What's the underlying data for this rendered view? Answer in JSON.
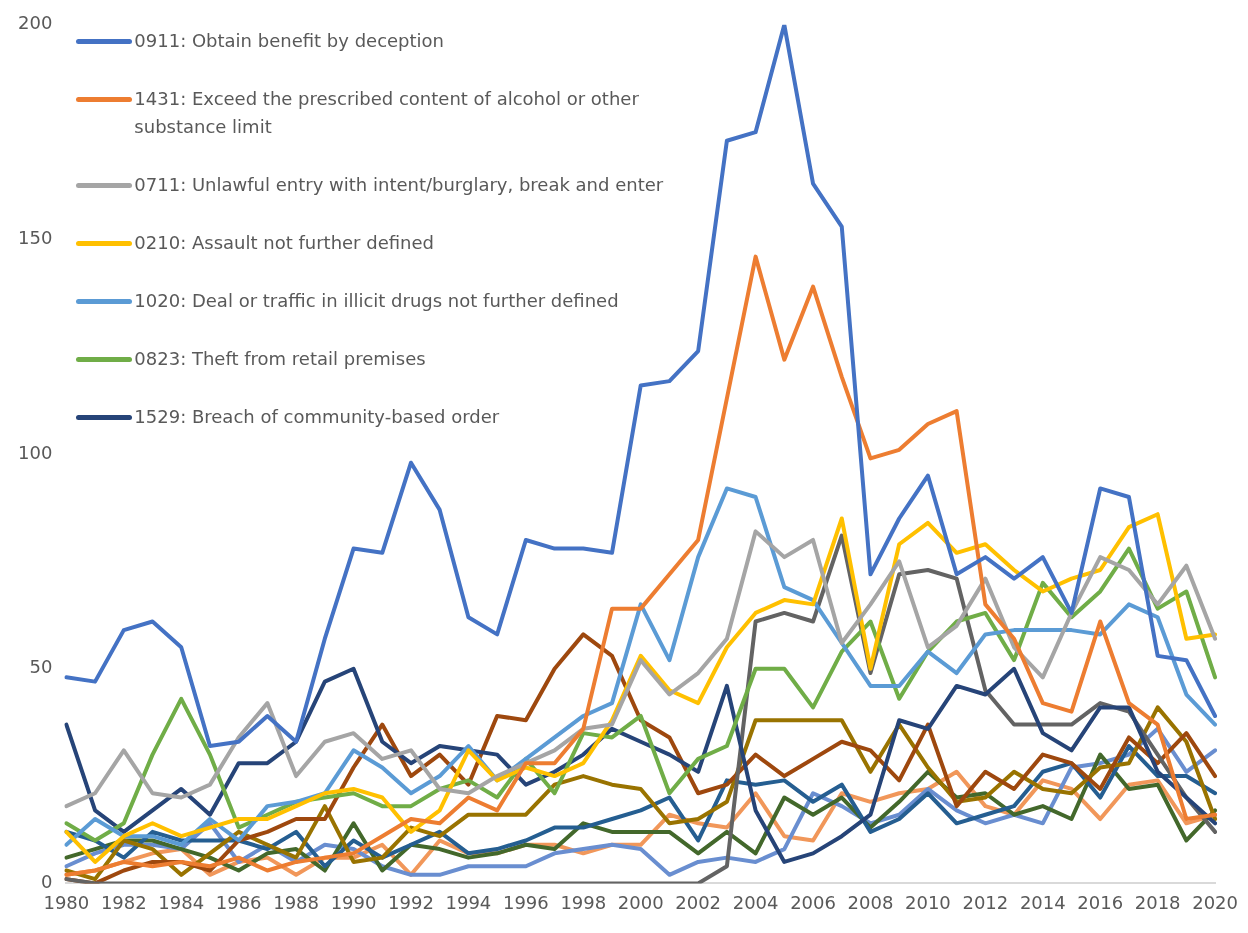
{
  "chart_data": {
    "type": "line",
    "categories": [
      "1980",
      null,
      "1982",
      null,
      "1984",
      null,
      "1986",
      null,
      "1988",
      null,
      "1990",
      null,
      "1992",
      null,
      "1994",
      null,
      "1996",
      null,
      "1998",
      null,
      "2000",
      null,
      "2002",
      null,
      "2004",
      null,
      "2006",
      null,
      "2008",
      null,
      "2010",
      null,
      "2012",
      null,
      "2014",
      null,
      "2016",
      null,
      "2018",
      null,
      "2020"
    ],
    "ylim": [
      0,
      200
    ],
    "yticks": [
      0,
      50,
      100,
      150,
      200
    ],
    "grid": false,
    "legend": "top left",
    "marker": "none",
    "line_style": "solid",
    "series": [
      {
        "name": "0911: Obtain benefit by deception",
        "color": "#4472c4",
        "values": [
          48,
          47,
          59,
          61,
          55,
          32,
          33,
          39,
          33,
          57,
          78,
          77,
          98,
          87,
          62,
          58,
          80,
          78,
          78,
          77,
          116,
          117,
          124,
          173,
          175,
          200,
          163,
          153,
          72,
          85,
          95,
          72,
          76,
          71,
          76,
          63,
          92,
          90,
          53,
          52,
          39
        ]
      },
      {
        "name": "1431: Exceed the prescribed content of alcohol or other substance limit",
        "color": "#ed7d31",
        "values": [
          2,
          3,
          5,
          4,
          5,
          4,
          6,
          3,
          5,
          6,
          7,
          11,
          15,
          14,
          20,
          17,
          28,
          28,
          36,
          64,
          64,
          72,
          80,
          113,
          146,
          122,
          139,
          118,
          99,
          101,
          107,
          110,
          65,
          57,
          42,
          40,
          61,
          42,
          37,
          15,
          16
        ]
      },
      {
        "name": "0711: Unlawful entry with intent/burglary, break and enter",
        "color": "#a5a5a5",
        "values": [
          18,
          21,
          31,
          21,
          20,
          23,
          34,
          42,
          25,
          33,
          35,
          29,
          31,
          22,
          21,
          25,
          28,
          31,
          36,
          37,
          52,
          44,
          49,
          57,
          82,
          76,
          80,
          56,
          65,
          75,
          55,
          60,
          71,
          55,
          48,
          63,
          76,
          73,
          65,
          74,
          57
        ]
      },
      {
        "name": "0210: Assault not further defined",
        "color": "#ffc000",
        "values": [
          12,
          5,
          11,
          14,
          11,
          13,
          15,
          15,
          18,
          21,
          22,
          20,
          12,
          17,
          31,
          24,
          27,
          25,
          28,
          38,
          53,
          45,
          42,
          55,
          63,
          66,
          65,
          85,
          50,
          79,
          84,
          77,
          79,
          73,
          68,
          71,
          73,
          83,
          86,
          57,
          58
        ]
      },
      {
        "name": "1020: Deal or traffic in illicit drugs not further defined",
        "color": "#5b9bd5",
        "values": [
          9,
          15,
          11,
          11,
          9,
          15,
          10,
          18,
          19,
          21,
          31,
          27,
          21,
          25,
          32,
          24,
          29,
          34,
          39,
          42,
          65,
          52,
          76,
          92,
          90,
          69,
          66,
          56,
          46,
          46,
          54,
          49,
          58,
          59,
          59,
          59,
          58,
          65,
          62,
          44,
          37
        ]
      },
      {
        "name": "0823: Theft from retail premises",
        "color": "#70ad47",
        "values": [
          14,
          10,
          14,
          30,
          43,
          30,
          13,
          16,
          19,
          20,
          21,
          18,
          18,
          22,
          24,
          20,
          29,
          21,
          35,
          34,
          39,
          21,
          29,
          32,
          50,
          50,
          41,
          54,
          61,
          43,
          54,
          61,
          63,
          52,
          70,
          62,
          68,
          78,
          64,
          68,
          48
        ]
      },
      {
        "name": "1529: Breach of community-based order",
        "color": "#264478",
        "values": [
          37,
          17,
          12,
          17,
          22,
          16,
          28,
          28,
          33,
          47,
          50,
          33,
          28,
          32,
          31,
          30,
          23,
          26,
          30,
          36,
          33,
          30,
          26,
          46,
          17,
          5,
          7,
          11,
          16,
          38,
          36,
          46,
          44,
          50,
          35,
          31,
          41,
          41,
          26,
          20,
          14
        ]
      },
      {
        "color": "#636363",
        "values": [
          1,
          0,
          0,
          0,
          0,
          0,
          0,
          0,
          0,
          0,
          0,
          0,
          0,
          0,
          0,
          0,
          0,
          0,
          0,
          0,
          0,
          0,
          0,
          4,
          61,
          63,
          61,
          81,
          49,
          72,
          73,
          71,
          45,
          37,
          37,
          37,
          42,
          40,
          30,
          20,
          12
        ]
      },
      {
        "color": "#9e480e",
        "values": [
          1,
          0,
          3,
          5,
          5,
          3,
          10,
          12,
          15,
          15,
          27,
          37,
          25,
          30,
          23,
          39,
          38,
          50,
          58,
          53,
          38,
          34,
          21,
          23,
          30,
          25,
          29,
          33,
          31,
          24,
          37,
          18,
          26,
          22,
          30,
          28,
          22,
          34,
          28,
          35,
          25
        ]
      },
      {
        "color": "#997300",
        "values": [
          3,
          1,
          10,
          8,
          2,
          7,
          12,
          9,
          6,
          18,
          5,
          6,
          13,
          11,
          16,
          16,
          16,
          23,
          25,
          23,
          22,
          14,
          15,
          19,
          38,
          38,
          38,
          38,
          26,
          37,
          27,
          19,
          20,
          26,
          22,
          21,
          27,
          28,
          41,
          33,
          15
        ]
      },
      {
        "color": "#255e91",
        "values": [
          12,
          10,
          6,
          12,
          10,
          10,
          10,
          8,
          12,
          4,
          10,
          6,
          9,
          12,
          7,
          8,
          10,
          13,
          13,
          15,
          17,
          20,
          10,
          24,
          23,
          24,
          19,
          23,
          12,
          15,
          21,
          14,
          16,
          18,
          26,
          28,
          20,
          32,
          25,
          25,
          21
        ]
      },
      {
        "color": "#43682b",
        "values": [
          6,
          8,
          10,
          10,
          8,
          6,
          3,
          7,
          8,
          3,
          14,
          3,
          9,
          8,
          6,
          7,
          9,
          8,
          14,
          12,
          12,
          12,
          7,
          12,
          7,
          20,
          16,
          20,
          13,
          19,
          26,
          20,
          21,
          16,
          18,
          15,
          30,
          22,
          23,
          10,
          17
        ]
      },
      {
        "color": "#698ed0",
        "values": [
          4,
          7,
          9,
          9,
          8,
          14,
          5,
          9,
          5,
          9,
          8,
          4,
          2,
          2,
          4,
          4,
          4,
          7,
          8,
          9,
          8,
          2,
          5,
          6,
          5,
          8,
          21,
          18,
          14,
          16,
          22,
          17,
          14,
          16,
          14,
          27,
          28,
          30,
          36,
          26,
          31
        ]
      },
      {
        "color": "#f1975a",
        "values": [
          2,
          3,
          5,
          7,
          8,
          2,
          5,
          6,
          2,
          6,
          6,
          9,
          2,
          10,
          7,
          7,
          9,
          9,
          7,
          9,
          9,
          16,
          14,
          13,
          21,
          11,
          10,
          21,
          19,
          21,
          22,
          26,
          18,
          16,
          24,
          22,
          15,
          23,
          24,
          14,
          16
        ]
      }
    ]
  }
}
